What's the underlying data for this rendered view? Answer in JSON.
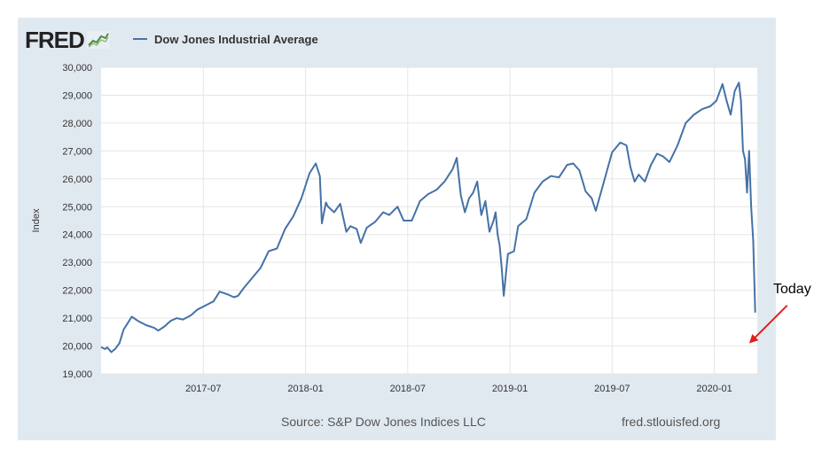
{
  "header": {
    "logo_text": "FRED",
    "legend_label": "Dow Jones Industrial Average"
  },
  "footer": {
    "source": "Source: S&P Dow Jones Indices LLC",
    "site": "fred.stlouisfed.org"
  },
  "annotation": {
    "label": "Today",
    "arrow_color": "#e02020"
  },
  "colors": {
    "series": "#4572a7",
    "panel_bg": "#e1e9f0",
    "plot_bg": "#ffffff",
    "grid": "#e6e6e6"
  },
  "chart_data": {
    "type": "line",
    "title": "",
    "xlabel": "",
    "ylabel": "Index",
    "ylim": [
      19000,
      30000
    ],
    "yticks": [
      19000,
      20000,
      21000,
      22000,
      23000,
      24000,
      25000,
      26000,
      27000,
      28000,
      29000,
      30000
    ],
    "ytick_labels": [
      "19,000",
      "20,000",
      "21,000",
      "22,000",
      "23,000",
      "24,000",
      "25,000",
      "26,000",
      "27,000",
      "28,000",
      "29,000",
      "30,000"
    ],
    "xlim": [
      2017.0,
      2020.21
    ],
    "xticks": [
      2017.5,
      2018.0,
      2018.5,
      2019.0,
      2019.5,
      2020.0
    ],
    "xtick_labels": [
      "2017-07",
      "2018-01",
      "2018-07",
      "2019-01",
      "2019-07",
      "2020-01"
    ],
    "grid": true,
    "legend": "top-left",
    "series": [
      {
        "name": "Dow Jones Industrial Average",
        "x": [
          2017.0,
          2017.02,
          2017.03,
          2017.05,
          2017.07,
          2017.09,
          2017.11,
          2017.13,
          2017.15,
          2017.18,
          2017.22,
          2017.26,
          2017.28,
          2017.31,
          2017.34,
          2017.37,
          2017.4,
          2017.44,
          2017.47,
          2017.51,
          2017.55,
          2017.58,
          2017.62,
          2017.65,
          2017.67,
          2017.7,
          2017.74,
          2017.78,
          2017.82,
          2017.86,
          2017.9,
          2017.94,
          2017.98,
          2018.02,
          2018.05,
          2018.07,
          2018.08,
          2018.1,
          2018.11,
          2018.14,
          2018.17,
          2018.2,
          2018.22,
          2018.25,
          2018.27,
          2018.3,
          2018.34,
          2018.38,
          2018.41,
          2018.45,
          2018.48,
          2018.52,
          2018.56,
          2018.6,
          2018.64,
          2018.68,
          2018.72,
          2018.74,
          2018.76,
          2018.78,
          2018.8,
          2018.82,
          2018.84,
          2018.86,
          2018.88,
          2018.9,
          2018.92,
          2018.93,
          2018.94,
          2018.95,
          2018.96,
          2018.97,
          2018.99,
          2019.02,
          2019.04,
          2019.08,
          2019.12,
          2019.16,
          2019.2,
          2019.24,
          2019.28,
          2019.31,
          2019.34,
          2019.37,
          2019.4,
          2019.42,
          2019.46,
          2019.5,
          2019.54,
          2019.57,
          2019.59,
          2019.61,
          2019.63,
          2019.66,
          2019.69,
          2019.72,
          2019.75,
          2019.78,
          2019.82,
          2019.86,
          2019.9,
          2019.94,
          2019.98,
          2020.01,
          2020.04,
          2020.06,
          2020.08,
          2020.1,
          2020.12,
          2020.13,
          2020.14,
          2020.15,
          2020.16,
          2020.17,
          2020.18,
          2020.19,
          2020.2
        ],
        "values": [
          19960,
          19890,
          19950,
          19780,
          19900,
          20100,
          20590,
          20820,
          21050,
          20900,
          20750,
          20650,
          20550,
          20700,
          20900,
          21000,
          20950,
          21100,
          21300,
          21450,
          21600,
          21950,
          21850,
          21750,
          21800,
          22100,
          22450,
          22800,
          23400,
          23500,
          24200,
          24650,
          25300,
          26200,
          26550,
          26100,
          24400,
          25150,
          25000,
          24800,
          25100,
          24100,
          24300,
          24200,
          23700,
          24250,
          24450,
          24800,
          24700,
          25000,
          24500,
          24500,
          25200,
          25450,
          25600,
          25900,
          26350,
          26750,
          25400,
          24800,
          25300,
          25500,
          25900,
          24700,
          25200,
          24100,
          24500,
          24800,
          24000,
          23600,
          22800,
          21800,
          23300,
          23400,
          24300,
          24550,
          25500,
          25900,
          26100,
          26050,
          26500,
          26550,
          26300,
          25550,
          25300,
          24850,
          25900,
          26950,
          27300,
          27200,
          26400,
          25900,
          26150,
          25900,
          26500,
          26900,
          26800,
          26600,
          27200,
          28000,
          28300,
          28500,
          28600,
          28800,
          29400,
          28800,
          28300,
          29150,
          29450,
          28800,
          27000,
          26700,
          25500,
          27000,
          25000,
          23800,
          21200
        ]
      }
    ]
  }
}
